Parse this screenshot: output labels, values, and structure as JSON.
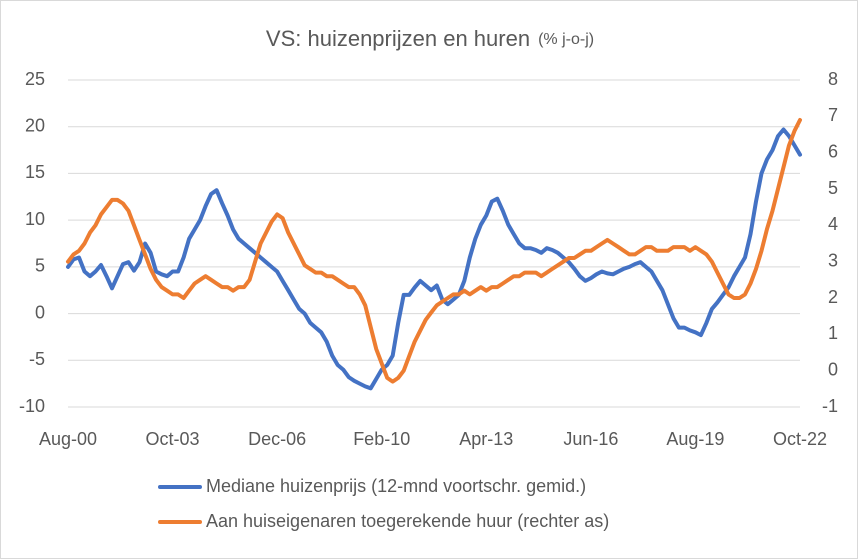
{
  "chart_data": {
    "type": "line",
    "title": "VS: huizenprijzen en huren",
    "subtitle": "(% j-o-j)",
    "categories": [
      "Aug-00",
      null,
      null,
      null,
      null,
      null,
      null,
      null,
      null,
      null,
      null,
      null,
      null,
      null,
      null,
      null,
      null,
      null,
      null,
      "Oct-03",
      null,
      null,
      null,
      null,
      null,
      null,
      null,
      null,
      null,
      null,
      null,
      null,
      null,
      null,
      null,
      null,
      null,
      null,
      "Dec-06",
      null,
      null,
      null,
      null,
      null,
      null,
      null,
      null,
      null,
      null,
      null,
      null,
      null,
      null,
      null,
      null,
      null,
      null,
      "Feb-10",
      null,
      null,
      null,
      null,
      null,
      null,
      null,
      null,
      null,
      null,
      null,
      null,
      null,
      null,
      null,
      null,
      null,
      null,
      "Apr-13",
      null,
      null,
      null,
      null,
      null,
      null,
      null,
      null,
      null,
      null,
      null,
      null,
      null,
      null,
      null,
      null,
      null,
      null,
      "Jun-16",
      null,
      null,
      null,
      null,
      null,
      null,
      null,
      null,
      null,
      null,
      null,
      null,
      null,
      null,
      null,
      null,
      null,
      null,
      "Aug-19",
      null,
      null,
      null,
      null,
      null,
      null,
      null,
      null,
      null,
      null,
      null,
      null,
      null,
      null,
      null,
      null,
      null,
      null,
      "Oct-22"
    ],
    "series": [
      {
        "name": "Mediane huizenprijs (12-mnd voortschr. gemid.)",
        "color": "#4472c4",
        "axis": "y",
        "values": [
          5,
          5.8,
          6,
          4.5,
          4,
          4.5,
          5.2,
          4,
          2.7,
          4,
          5.3,
          5.5,
          4.6,
          5.5,
          7.5,
          6.5,
          4.5,
          4.2,
          4,
          4.5,
          4.5,
          6,
          8,
          9,
          10,
          11.5,
          12.8,
          13.2,
          11.8,
          10.5,
          9,
          8,
          7.5,
          7,
          6.5,
          6,
          5.5,
          5,
          4.5,
          3.5,
          2.5,
          1.5,
          0.5,
          0,
          -1,
          -1.5,
          -2,
          -3,
          -4.5,
          -5.5,
          -6,
          -6.8,
          -7.2,
          -7.5,
          -7.8,
          -8,
          -7,
          -6,
          -5.5,
          -4.5,
          -1,
          2,
          2,
          2.8,
          3.5,
          3,
          2.5,
          3,
          1.5,
          1,
          1.5,
          2,
          3.5,
          6,
          8,
          9.5,
          10.5,
          12,
          12.3,
          11,
          9.5,
          8.5,
          7.5,
          7,
          7,
          6.8,
          6.5,
          7,
          6.8,
          6.5,
          6,
          5.5,
          4.8,
          4,
          3.5,
          3.8,
          4.2,
          4.5,
          4.3,
          4.2,
          4.5,
          4.8,
          5,
          5.3,
          5.5,
          5,
          4.5,
          3.5,
          2.5,
          1,
          -0.5,
          -1.5,
          -1.5,
          -1.8,
          -2,
          -2.3,
          -1,
          0.5,
          1.2,
          2,
          2.8,
          4,
          5,
          6,
          8.5,
          12,
          15,
          16.5,
          17.5,
          19,
          19.7,
          19,
          18,
          17
        ]
      },
      {
        "name": "Aan huiseigenaren toegerekende huur (rechter as)",
        "color": "#ed7d31",
        "axis": "y2",
        "values": [
          3,
          3.2,
          3.3,
          3.5,
          3.8,
          4,
          4.3,
          4.5,
          4.7,
          4.7,
          4.6,
          4.4,
          4,
          3.6,
          3.2,
          2.8,
          2.5,
          2.3,
          2.2,
          2.1,
          2.1,
          2.0,
          2.2,
          2.4,
          2.5,
          2.6,
          2.5,
          2.4,
          2.3,
          2.3,
          2.2,
          2.3,
          2.3,
          2.5,
          3,
          3.5,
          3.8,
          4.1,
          4.3,
          4.2,
          3.8,
          3.5,
          3.2,
          2.9,
          2.8,
          2.7,
          2.7,
          2.6,
          2.6,
          2.5,
          2.4,
          2.3,
          2.3,
          2.1,
          1.8,
          1.2,
          0.6,
          0.2,
          -0.2,
          -0.3,
          -0.2,
          0,
          0.4,
          0.8,
          1.1,
          1.4,
          1.6,
          1.8,
          1.9,
          2.0,
          2.1,
          2.1,
          2.2,
          2.1,
          2.2,
          2.3,
          2.2,
          2.3,
          2.3,
          2.4,
          2.5,
          2.6,
          2.6,
          2.7,
          2.7,
          2.7,
          2.6,
          2.7,
          2.8,
          2.9,
          3.0,
          3.1,
          3.1,
          3.2,
          3.3,
          3.3,
          3.4,
          3.5,
          3.6,
          3.5,
          3.4,
          3.3,
          3.2,
          3.2,
          3.3,
          3.4,
          3.4,
          3.3,
          3.3,
          3.3,
          3.4,
          3.4,
          3.4,
          3.3,
          3.4,
          3.3,
          3.2,
          3.0,
          2.7,
          2.4,
          2.1,
          2.0,
          2.0,
          2.1,
          2.4,
          2.8,
          3.3,
          3.9,
          4.4,
          5.0,
          5.6,
          6.2,
          6.6,
          6.9
        ]
      }
    ],
    "ylim": [
      -10,
      25
    ],
    "yticks": [
      -10,
      -5,
      0,
      5,
      10,
      15,
      20,
      25
    ],
    "y2lim": [
      -1,
      8
    ],
    "y2ticks": [
      -1,
      0,
      1,
      2,
      3,
      4,
      5,
      6,
      7,
      8
    ],
    "grid": true
  }
}
